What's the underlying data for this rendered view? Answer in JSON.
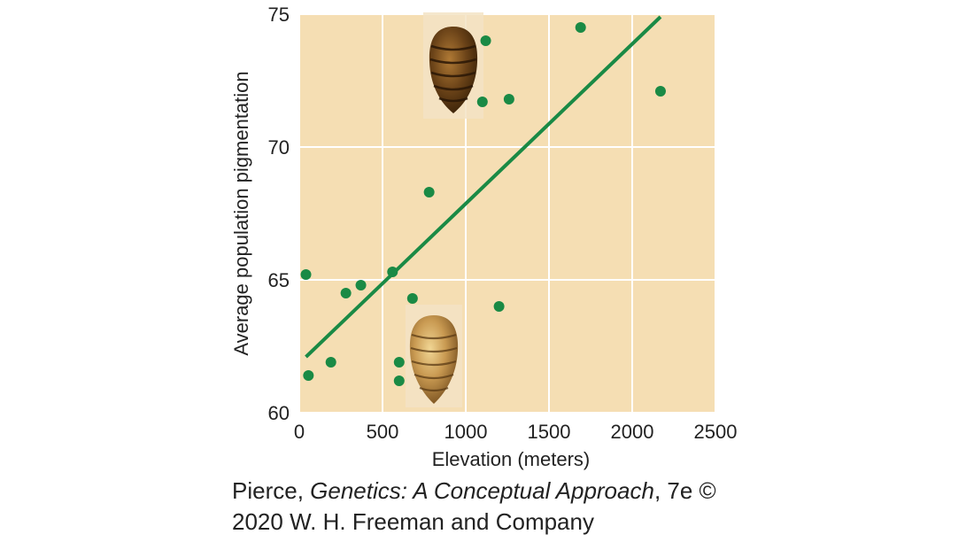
{
  "chart_data": {
    "type": "scatter",
    "xlabel": "Elevation (meters)",
    "ylabel": "Average population pigmentation",
    "xlim": [
      0,
      2500
    ],
    "ylim": [
      60,
      75
    ],
    "x_ticks": [
      "0",
      "500",
      "1000",
      "1500",
      "2000",
      "2500"
    ],
    "y_ticks": [
      "60",
      "65",
      "70",
      "75"
    ],
    "grid": true,
    "points": [
      {
        "x": 40,
        "y": 65.2
      },
      {
        "x": 55,
        "y": 61.4
      },
      {
        "x": 190,
        "y": 61.9
      },
      {
        "x": 280,
        "y": 64.5
      },
      {
        "x": 370,
        "y": 64.8
      },
      {
        "x": 560,
        "y": 65.3
      },
      {
        "x": 600,
        "y": 61.9
      },
      {
        "x": 600,
        "y": 61.2
      },
      {
        "x": 680,
        "y": 64.3
      },
      {
        "x": 780,
        "y": 68.3
      },
      {
        "x": 1100,
        "y": 71.7
      },
      {
        "x": 1120,
        "y": 74.0
      },
      {
        "x": 1200,
        "y": 64.0
      },
      {
        "x": 1260,
        "y": 71.8
      },
      {
        "x": 1690,
        "y": 74.5
      },
      {
        "x": 2170,
        "y": 72.1
      }
    ],
    "trendline": {
      "x": [
        40,
        2170
      ],
      "y": [
        62.1,
        74.9
      ]
    },
    "colors": {
      "plot_background": "#f5deb3",
      "grid": "#ffffff",
      "points": "#1a8a45",
      "trendline": "#1a8a45"
    },
    "illustrations": [
      "dark-abdomen-icon",
      "light-abdomen-icon"
    ]
  },
  "credit": {
    "author": "Pierce, ",
    "book_title": "Genetics: A Conceptual Approach",
    "edition": ", 7e ©",
    "line2": "2020 W. H. Freeman and Company"
  }
}
